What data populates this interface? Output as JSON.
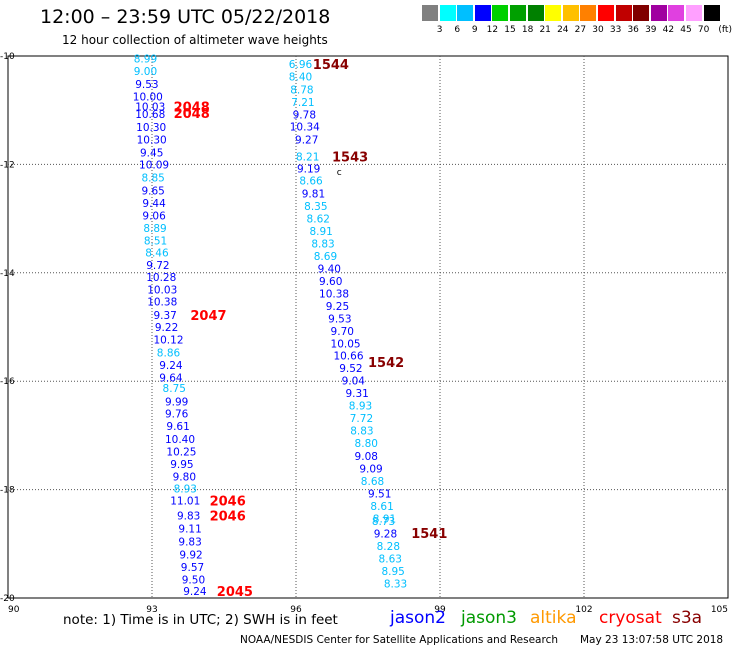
{
  "header": {
    "title": "12:00  –  23:59  UTC  05/22/2018",
    "subtitle": "12 hour collection of altimeter wave heights"
  },
  "color_scale": {
    "labels": [
      "3",
      "6",
      "9",
      "12",
      "15",
      "18",
      "21",
      "24",
      "27",
      "30",
      "33",
      "36",
      "39",
      "42",
      "45",
      "70",
      "(ft)"
    ],
    "colors": [
      "#808080",
      "#00ffff",
      "#00bfff",
      "#0000ff",
      "#00d000",
      "#00a000",
      "#008000",
      "#ffff00",
      "#ffc000",
      "#ff8000",
      "#ff0000",
      "#c00000",
      "#800000",
      "#a000a0",
      "#e040e0",
      "#ffa0ff",
      "#000000"
    ]
  },
  "map": {
    "lon_ticks": [
      "90",
      "93",
      "96",
      "99",
      "102",
      "105"
    ],
    "lat_ticks": [
      "-10",
      "-12",
      "-14",
      "-16",
      "-18",
      "-20"
    ],
    "lon_range": [
      90,
      105
    ],
    "lat_range": [
      -10,
      -20
    ]
  },
  "tracks": [
    {
      "id": "track-2048",
      "labels": [
        {
          "text": "2048",
          "lat": -10.93,
          "lon": 93.45
        },
        {
          "text": "2048",
          "lat": -11.05,
          "lon": 93.45
        }
      ]
    },
    {
      "id": "track-2047",
      "labels": [
        {
          "text": "2047",
          "lat": -14.78,
          "lon": 93.8
        }
      ]
    },
    {
      "id": "track-2046",
      "labels": [
        {
          "text": "2046",
          "lat": -18.2,
          "lon": 94.2
        },
        {
          "text": "2046",
          "lat": -18.48,
          "lon": 94.2
        }
      ]
    },
    {
      "id": "track-2045",
      "labels": [
        {
          "text": "2045",
          "lat": -19.87,
          "lon": 94.35
        }
      ]
    },
    {
      "id": "track-1544",
      "labels": [
        {
          "text": "1544",
          "lat": -10.15,
          "lon": 96.35
        }
      ]
    },
    {
      "id": "track-1543",
      "labels": [
        {
          "text": "1543",
          "lat": -11.85,
          "lon": 96.75
        }
      ]
    },
    {
      "id": "track-1542",
      "labels": [
        {
          "text": "1542",
          "lat": -15.65,
          "lon": 97.5
        }
      ]
    },
    {
      "id": "track-1541",
      "labels": [
        {
          "text": "1541",
          "lat": -18.8,
          "lon": 98.4
        }
      ]
    }
  ],
  "points_west": [
    {
      "v": "8.99",
      "lat": -10.05,
      "lon": 92.62,
      "c": "#00bfff"
    },
    {
      "v": "9.00",
      "lat": -10.28,
      "lon": 92.62,
      "c": "#00bfff"
    },
    {
      "v": "9.53",
      "lat": -10.52,
      "lon": 92.65,
      "c": "#0000ff"
    },
    {
      "v": "10.00",
      "lat": -10.75,
      "lon": 92.6,
      "c": "#0000ff"
    },
    {
      "v": "10.03",
      "lat": -10.93,
      "lon": 92.65,
      "c": "#0000ff"
    },
    {
      "v": "10.68",
      "lat": -11.07,
      "lon": 92.65,
      "c": "#0000ff"
    },
    {
      "v": "10.30",
      "lat": -11.31,
      "lon": 92.67,
      "c": "#0000ff"
    },
    {
      "v": "10.30",
      "lat": -11.54,
      "lon": 92.68,
      "c": "#0000ff"
    },
    {
      "v": "9.45",
      "lat": -11.78,
      "lon": 92.75,
      "c": "#0000ff"
    },
    {
      "v": "10.09",
      "lat": -12.0,
      "lon": 92.73,
      "c": "#0000ff"
    },
    {
      "v": "8.85",
      "lat": -12.24,
      "lon": 92.78,
      "c": "#00bfff"
    },
    {
      "v": "9.65",
      "lat": -12.48,
      "lon": 92.78,
      "c": "#0000ff"
    },
    {
      "v": "9.44",
      "lat": -12.71,
      "lon": 92.8,
      "c": "#0000ff"
    },
    {
      "v": "9.06",
      "lat": -12.94,
      "lon": 92.8,
      "c": "#0000ff"
    },
    {
      "v": "8.89",
      "lat": -13.17,
      "lon": 92.82,
      "c": "#00bfff"
    },
    {
      "v": "8.51",
      "lat": -13.4,
      "lon": 92.83,
      "c": "#00bfff"
    },
    {
      "v": "8.46",
      "lat": -13.63,
      "lon": 92.86,
      "c": "#00bfff"
    },
    {
      "v": "9.72",
      "lat": -13.86,
      "lon": 92.88,
      "c": "#0000ff"
    },
    {
      "v": "10.28",
      "lat": -14.08,
      "lon": 92.88,
      "c": "#0000ff"
    },
    {
      "v": "10.03",
      "lat": -14.31,
      "lon": 92.9,
      "c": "#0000ff"
    },
    {
      "v": "10.38",
      "lat": -14.53,
      "lon": 92.9,
      "c": "#0000ff"
    },
    {
      "v": "9.37",
      "lat": -14.78,
      "lon": 93.03,
      "c": "#0000ff"
    },
    {
      "v": "9.22",
      "lat": -15.0,
      "lon": 93.06,
      "c": "#0000ff"
    },
    {
      "v": "10.12",
      "lat": -15.23,
      "lon": 93.03,
      "c": "#0000ff"
    },
    {
      "v": "8.86",
      "lat": -15.47,
      "lon": 93.1,
      "c": "#00bfff"
    },
    {
      "v": "9.24",
      "lat": -15.7,
      "lon": 93.15,
      "c": "#0000ff"
    },
    {
      "v": "9.64",
      "lat": -15.93,
      "lon": 93.15,
      "c": "#0000ff"
    },
    {
      "v": "8.75",
      "lat": -16.13,
      "lon": 93.22,
      "c": "#00bfff"
    },
    {
      "v": "9.99",
      "lat": -16.37,
      "lon": 93.27,
      "c": "#0000ff"
    },
    {
      "v": "9.76",
      "lat": -16.6,
      "lon": 93.27,
      "c": "#0000ff"
    },
    {
      "v": "9.61",
      "lat": -16.83,
      "lon": 93.3,
      "c": "#0000ff"
    },
    {
      "v": "10.40",
      "lat": -17.07,
      "lon": 93.27,
      "c": "#0000ff"
    },
    {
      "v": "10.25",
      "lat": -17.3,
      "lon": 93.3,
      "c": "#0000ff"
    },
    {
      "v": "9.95",
      "lat": -17.53,
      "lon": 93.38,
      "c": "#0000ff"
    },
    {
      "v": "9.80",
      "lat": -17.76,
      "lon": 93.43,
      "c": "#0000ff"
    },
    {
      "v": "8.93",
      "lat": -17.98,
      "lon": 93.45,
      "c": "#00bfff"
    },
    {
      "v": "11.01",
      "lat": -18.2,
      "lon": 93.38,
      "c": "#0000ff"
    },
    {
      "v": "9.83",
      "lat": -18.48,
      "lon": 93.52,
      "c": "#0000ff"
    },
    {
      "v": "9.11",
      "lat": -18.72,
      "lon": 93.55,
      "c": "#0000ff"
    },
    {
      "v": "9.83",
      "lat": -18.96,
      "lon": 93.55,
      "c": "#0000ff"
    },
    {
      "v": "9.92",
      "lat": -19.2,
      "lon": 93.57,
      "c": "#0000ff"
    },
    {
      "v": "9.57",
      "lat": -19.43,
      "lon": 93.6,
      "c": "#0000ff"
    },
    {
      "v": "9.50",
      "lat": -19.66,
      "lon": 93.62,
      "c": "#0000ff"
    },
    {
      "v": "9.24",
      "lat": -19.87,
      "lon": 93.65,
      "c": "#0000ff"
    }
  ],
  "points_east": [
    {
      "v": "6.96",
      "lat": -10.15,
      "lon": 95.85,
      "c": "#00bfff"
    },
    {
      "v": "8.40",
      "lat": -10.38,
      "lon": 95.85,
      "c": "#00bfff"
    },
    {
      "v": "8.78",
      "lat": -10.62,
      "lon": 95.88,
      "c": "#00bfff"
    },
    {
      "v": "7.21",
      "lat": -10.85,
      "lon": 95.9,
      "c": "#00bfff"
    },
    {
      "v": "9.78",
      "lat": -11.08,
      "lon": 95.93,
      "c": "#0000ff"
    },
    {
      "v": "10.34",
      "lat": -11.3,
      "lon": 95.87,
      "c": "#0000ff"
    },
    {
      "v": "9.27",
      "lat": -11.54,
      "lon": 95.98,
      "c": "#0000ff"
    },
    {
      "v": "8.21",
      "lat": -11.85,
      "lon": 96.0,
      "c": "#00bfff"
    },
    {
      "v": "9.19",
      "lat": -12.08,
      "lon": 96.02,
      "c": "#0000ff"
    },
    {
      "v": "8.66",
      "lat": -12.3,
      "lon": 96.07,
      "c": "#00bfff"
    },
    {
      "v": "9.81",
      "lat": -12.54,
      "lon": 96.12,
      "c": "#0000ff"
    },
    {
      "v": "8.35",
      "lat": -12.77,
      "lon": 96.17,
      "c": "#00bfff"
    },
    {
      "v": "8.62",
      "lat": -13.0,
      "lon": 96.22,
      "c": "#00bfff"
    },
    {
      "v": "8.91",
      "lat": -13.23,
      "lon": 96.28,
      "c": "#00bfff"
    },
    {
      "v": "8.83",
      "lat": -13.46,
      "lon": 96.32,
      "c": "#00bfff"
    },
    {
      "v": "8.69",
      "lat": -13.69,
      "lon": 96.37,
      "c": "#00bfff"
    },
    {
      "v": "9.40",
      "lat": -13.92,
      "lon": 96.45,
      "c": "#0000ff"
    },
    {
      "v": "9.60",
      "lat": -14.15,
      "lon": 96.48,
      "c": "#0000ff"
    },
    {
      "v": "10.38",
      "lat": -14.38,
      "lon": 96.48,
      "c": "#0000ff"
    },
    {
      "v": "9.25",
      "lat": -14.61,
      "lon": 96.62,
      "c": "#0000ff"
    },
    {
      "v": "9.53",
      "lat": -14.84,
      "lon": 96.67,
      "c": "#0000ff"
    },
    {
      "v": "9.70",
      "lat": -15.07,
      "lon": 96.72,
      "c": "#0000ff"
    },
    {
      "v": "10.05",
      "lat": -15.3,
      "lon": 96.72,
      "c": "#0000ff"
    },
    {
      "v": "10.66",
      "lat": -15.53,
      "lon": 96.78,
      "c": "#0000ff"
    },
    {
      "v": "9.52",
      "lat": -15.76,
      "lon": 96.9,
      "c": "#0000ff"
    },
    {
      "v": "9.04",
      "lat": -15.99,
      "lon": 96.95,
      "c": "#0000ff"
    },
    {
      "v": "9.31",
      "lat": -16.22,
      "lon": 97.03,
      "c": "#0000ff"
    },
    {
      "v": "8.93",
      "lat": -16.45,
      "lon": 97.1,
      "c": "#00bfff"
    },
    {
      "v": "7.72",
      "lat": -16.68,
      "lon": 97.12,
      "c": "#00bfff"
    },
    {
      "v": "8.83",
      "lat": -16.91,
      "lon": 97.13,
      "c": "#00bfff"
    },
    {
      "v": "8.80",
      "lat": -17.14,
      "lon": 97.22,
      "c": "#00bfff"
    },
    {
      "v": "9.08",
      "lat": -17.38,
      "lon": 97.22,
      "c": "#0000ff"
    },
    {
      "v": "9.09",
      "lat": -17.61,
      "lon": 97.32,
      "c": "#0000ff"
    },
    {
      "v": "8.68",
      "lat": -17.84,
      "lon": 97.35,
      "c": "#00bfff"
    },
    {
      "v": "9.51",
      "lat": -18.07,
      "lon": 97.5,
      "c": "#0000ff"
    },
    {
      "v": "8.61",
      "lat": -18.3,
      "lon": 97.55,
      "c": "#00bfff"
    },
    {
      "v": "8.91",
      "lat": -18.53,
      "lon": 97.6,
      "c": "#00bfff"
    },
    {
      "v": "8.73",
      "lat": -18.58,
      "lon": 97.58,
      "c": "#00bfff"
    },
    {
      "v": "9.28",
      "lat": -18.81,
      "lon": 97.62,
      "c": "#0000ff"
    },
    {
      "v": "8.28",
      "lat": -19.04,
      "lon": 97.68,
      "c": "#00bfff"
    },
    {
      "v": "8.63",
      "lat": -19.27,
      "lon": 97.72,
      "c": "#00bfff"
    },
    {
      "v": "8.95",
      "lat": -19.5,
      "lon": 97.78,
      "c": "#00bfff"
    },
    {
      "v": "8.33",
      "lat": -19.73,
      "lon": 97.83,
      "c": "#00bfff"
    }
  ],
  "footer": {
    "note": "note: 1) Time is in UTC; 2) SWH is in feet",
    "satellites": [
      {
        "name": "jason2",
        "color": "#0000ff"
      },
      {
        "name": "jason3",
        "color": "#009900"
      },
      {
        "name": "altika",
        "color": "#ff9900"
      },
      {
        "name": "cryosat",
        "color": "#ff0000"
      },
      {
        "name": "s3a",
        "color": "#880000"
      }
    ],
    "credit": "NOAA/NESDIS Center for Satellite Applications and Research",
    "timestamp": "May 23 13:07:58 UTC 2018"
  }
}
